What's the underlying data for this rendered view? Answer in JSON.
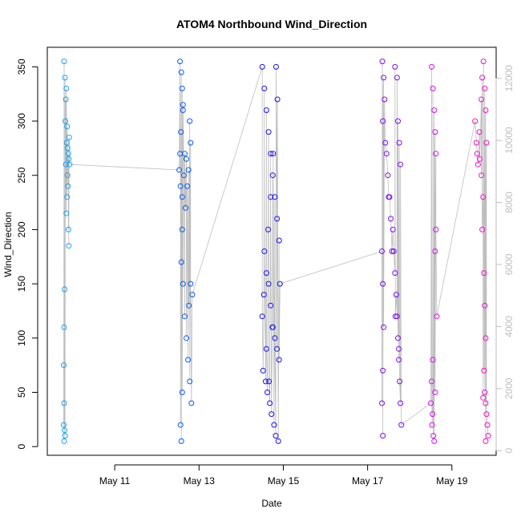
{
  "chart_data": {
    "type": "scatter",
    "title": "ATOM4 Northbound Wind_Direction",
    "xlabel": "Date",
    "ylabel": "Wind_Direction",
    "x_ticks": [
      "May 11",
      "May 13",
      "May 15",
      "May 17",
      "May 19"
    ],
    "x_tick_days": [
      11,
      13,
      15,
      17,
      19
    ],
    "xlim_days": [
      9.4,
      20.05
    ],
    "ylim": [
      -8,
      368
    ],
    "y_ticks": [
      0,
      50,
      100,
      150,
      200,
      250,
      300,
      350
    ],
    "y2lim": [
      -150,
      13000
    ],
    "y2_ticks": [
      0,
      2000,
      4000,
      6000,
      8000,
      10000,
      12000
    ],
    "grid": false,
    "legend": "none",
    "line_color": "#bebebe",
    "secondary_axis_color": "#bebebe",
    "series": [
      {
        "day_start": 9.78,
        "day_end": 9.94,
        "color": "#1aa3f0",
        "points": [
          [
            9.8,
            355
          ],
          [
            9.82,
            340
          ],
          [
            9.84,
            320
          ],
          [
            9.83,
            300
          ],
          [
            9.86,
            280
          ],
          [
            9.84,
            260
          ],
          [
            9.88,
            250
          ],
          [
            9.87,
            230
          ],
          [
            9.85,
            215
          ],
          [
            9.9,
            270
          ],
          [
            9.92,
            285
          ],
          [
            9.91,
            265
          ],
          [
            9.93,
            260
          ],
          [
            9.89,
            240
          ],
          [
            9.9,
            200
          ],
          [
            9.91,
            185
          ],
          [
            9.81,
            145
          ],
          [
            9.8,
            110
          ],
          [
            9.79,
            75
          ],
          [
            9.8,
            40
          ],
          [
            9.79,
            20
          ],
          [
            9.81,
            15
          ],
          [
            9.8,
            5
          ],
          [
            9.82,
            10
          ],
          [
            9.85,
            330
          ],
          [
            9.87,
            295
          ],
          [
            9.88,
            275
          ]
        ]
      },
      {
        "day_start": 12.5,
        "day_end": 12.84,
        "color": "#0a5cf5",
        "points": [
          [
            12.55,
            355
          ],
          [
            12.58,
            345
          ],
          [
            12.6,
            330
          ],
          [
            12.62,
            310
          ],
          [
            12.57,
            290
          ],
          [
            12.55,
            270
          ],
          [
            12.53,
            255
          ],
          [
            12.56,
            240
          ],
          [
            12.6,
            230
          ],
          [
            12.64,
            250
          ],
          [
            12.7,
            265
          ],
          [
            12.72,
            240
          ],
          [
            12.78,
            300
          ],
          [
            12.8,
            280
          ],
          [
            12.75,
            255
          ],
          [
            12.68,
            220
          ],
          [
            12.6,
            200
          ],
          [
            12.58,
            170
          ],
          [
            12.62,
            150
          ],
          [
            12.66,
            120
          ],
          [
            12.7,
            100
          ],
          [
            12.74,
            80
          ],
          [
            12.78,
            60
          ],
          [
            12.82,
            40
          ],
          [
            12.6,
            50
          ],
          [
            12.56,
            20
          ],
          [
            12.58,
            5
          ],
          [
            12.76,
            130
          ],
          [
            12.8,
            150
          ],
          [
            12.84,
            140
          ],
          [
            12.66,
            270
          ],
          [
            12.62,
            315
          ]
        ]
      },
      {
        "day_start": 14.45,
        "day_end": 14.95,
        "color": "#1a10f0",
        "points": [
          [
            14.5,
            350
          ],
          [
            14.55,
            330
          ],
          [
            14.6,
            310
          ],
          [
            14.65,
            290
          ],
          [
            14.7,
            270
          ],
          [
            14.75,
            250
          ],
          [
            14.8,
            230
          ],
          [
            14.85,
            210
          ],
          [
            14.9,
            190
          ],
          [
            14.55,
            180
          ],
          [
            14.6,
            160
          ],
          [
            14.65,
            150
          ],
          [
            14.7,
            130
          ],
          [
            14.75,
            110
          ],
          [
            14.8,
            100
          ],
          [
            14.85,
            90
          ],
          [
            14.9,
            80
          ],
          [
            14.52,
            70
          ],
          [
            14.58,
            60
          ],
          [
            14.62,
            50
          ],
          [
            14.68,
            40
          ],
          [
            14.72,
            30
          ],
          [
            14.78,
            20
          ],
          [
            14.82,
            10
          ],
          [
            14.88,
            5
          ],
          [
            14.92,
            150
          ],
          [
            14.5,
            120
          ],
          [
            14.54,
            140
          ],
          [
            14.76,
            270
          ],
          [
            14.83,
            350
          ],
          [
            14.86,
            320
          ],
          [
            14.64,
            200
          ],
          [
            14.7,
            230
          ],
          [
            14.74,
            110
          ],
          [
            14.66,
            60
          ],
          [
            14.6,
            90
          ]
        ]
      },
      {
        "day_start": 17.28,
        "day_end": 17.82,
        "color": "#7a10f0",
        "points": [
          [
            17.35,
            355
          ],
          [
            17.38,
            340
          ],
          [
            17.4,
            320
          ],
          [
            17.36,
            300
          ],
          [
            17.42,
            280
          ],
          [
            17.45,
            270
          ],
          [
            17.48,
            250
          ],
          [
            17.5,
            230
          ],
          [
            17.55,
            210
          ],
          [
            17.6,
            200
          ],
          [
            17.62,
            180
          ],
          [
            17.65,
            160
          ],
          [
            17.68,
            140
          ],
          [
            17.7,
            120
          ],
          [
            17.72,
            100
          ],
          [
            17.74,
            80
          ],
          [
            17.76,
            60
          ],
          [
            17.78,
            40
          ],
          [
            17.8,
            20
          ],
          [
            17.65,
            350
          ],
          [
            17.7,
            340
          ],
          [
            17.72,
            300
          ],
          [
            17.75,
            280
          ],
          [
            17.78,
            260
          ],
          [
            17.34,
            180
          ],
          [
            17.36,
            150
          ],
          [
            17.38,
            110
          ],
          [
            17.36,
            70
          ],
          [
            17.34,
            40
          ],
          [
            17.36,
            10
          ],
          [
            17.52,
            230
          ],
          [
            17.58,
            180
          ],
          [
            17.66,
            120
          ],
          [
            17.74,
            90
          ]
        ]
      },
      {
        "day_start": 18.48,
        "day_end": 18.68,
        "color": "#d710f5",
        "points": [
          [
            18.52,
            350
          ],
          [
            18.55,
            330
          ],
          [
            18.58,
            310
          ],
          [
            18.6,
            290
          ],
          [
            18.62,
            270
          ],
          [
            18.55,
            80
          ],
          [
            18.52,
            60
          ],
          [
            18.5,
            40
          ],
          [
            18.53,
            20
          ],
          [
            18.56,
            10
          ],
          [
            18.58,
            5
          ],
          [
            18.6,
            180
          ],
          [
            18.62,
            200
          ],
          [
            18.64,
            120
          ],
          [
            18.6,
            50
          ],
          [
            18.54,
            30
          ]
        ]
      },
      {
        "day_start": 19.5,
        "day_end": 19.9,
        "color": "#f510c8",
        "points": [
          [
            19.55,
            300
          ],
          [
            19.58,
            280
          ],
          [
            19.6,
            270
          ],
          [
            19.62,
            260
          ],
          [
            19.65,
            290
          ],
          [
            19.7,
            320
          ],
          [
            19.72,
            340
          ],
          [
            19.75,
            355
          ],
          [
            19.78,
            330
          ],
          [
            19.8,
            310
          ],
          [
            19.82,
            280
          ],
          [
            19.74,
            230
          ],
          [
            19.72,
            200
          ],
          [
            19.76,
            160
          ],
          [
            19.78,
            130
          ],
          [
            19.8,
            100
          ],
          [
            19.76,
            70
          ],
          [
            19.78,
            50
          ],
          [
            19.8,
            40
          ],
          [
            19.82,
            30
          ],
          [
            19.84,
            20
          ],
          [
            19.86,
            10
          ],
          [
            19.8,
            5
          ],
          [
            19.74,
            45
          ],
          [
            19.7,
            250
          ],
          [
            19.66,
            265
          ]
        ]
      }
    ]
  }
}
